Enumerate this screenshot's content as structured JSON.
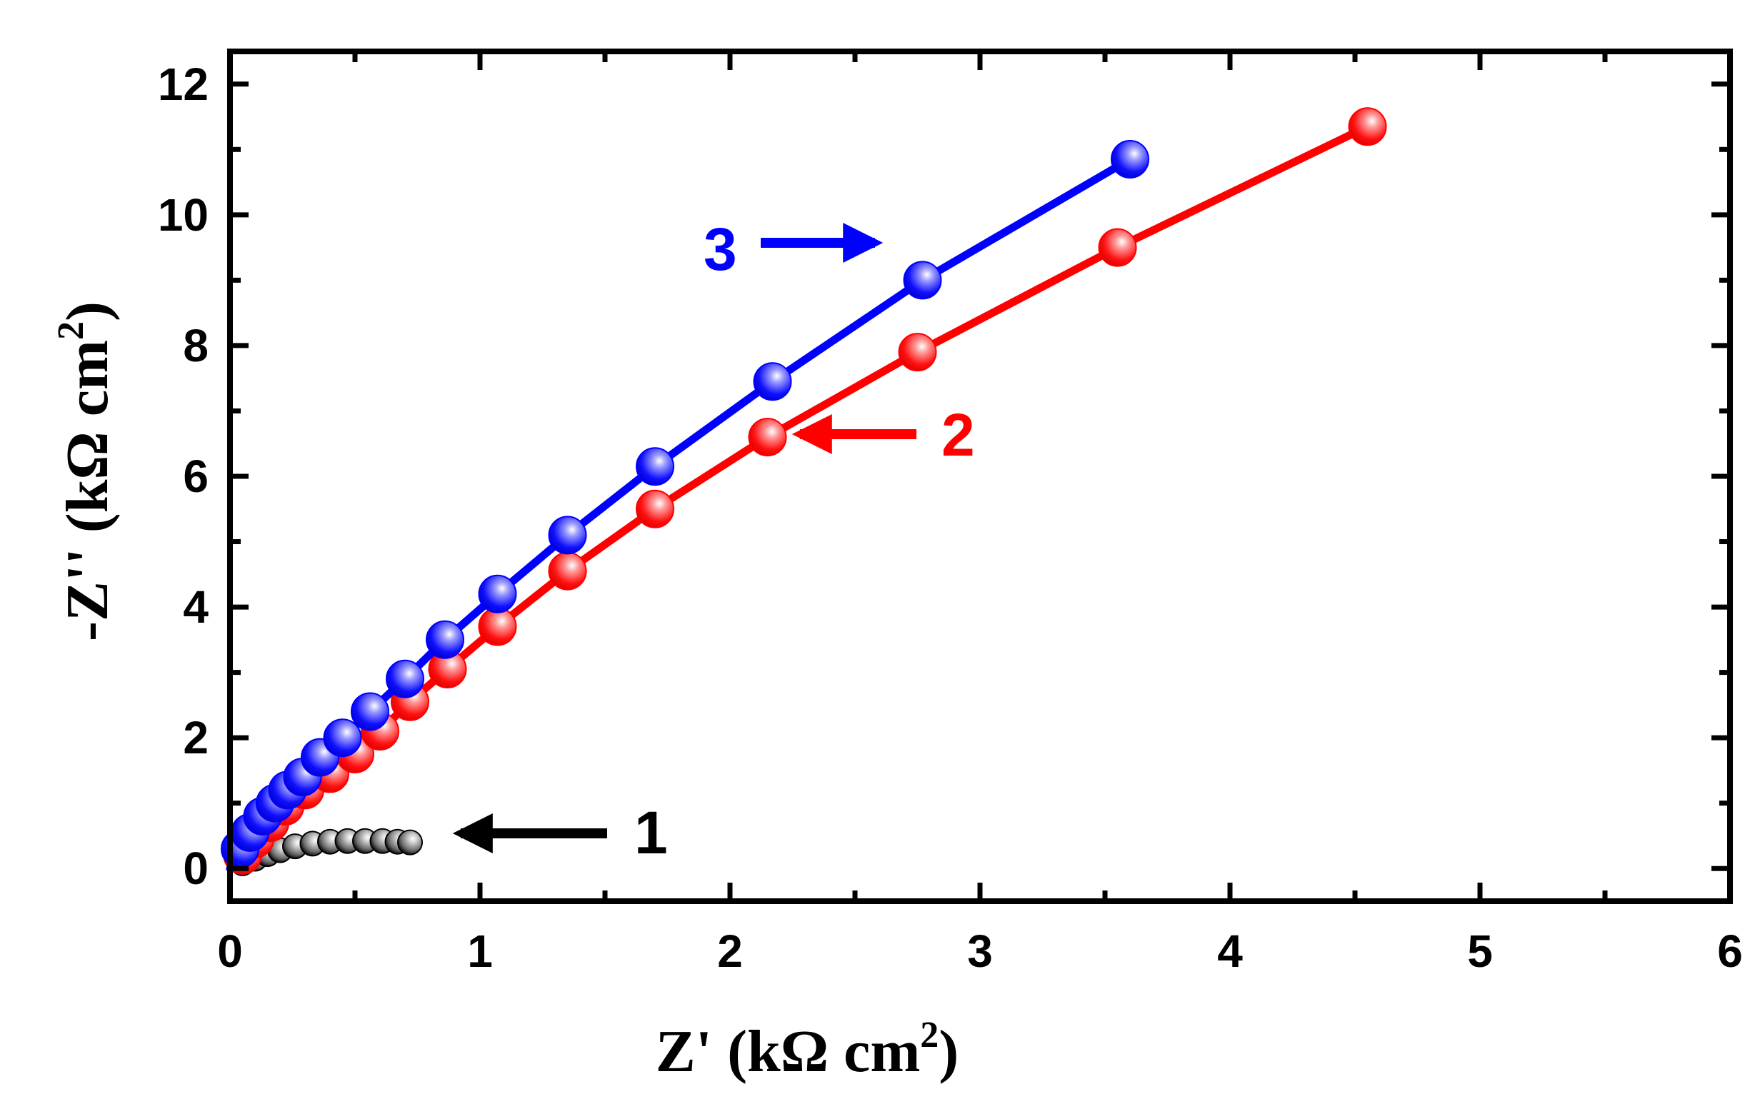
{
  "chart_data": {
    "type": "scatter",
    "xlabel": "Z' (kΩ cm",
    "xlabel_sup": "2",
    "xlabel_close": ")",
    "ylabel": "-Z'' (kΩ cm",
    "ylabel_sup": "2",
    "ylabel_close": ")",
    "xlim": [
      0,
      6
    ],
    "ylim": [
      -0.5,
      12.5
    ],
    "xticks": [
      "0",
      "1",
      "2",
      "3",
      "4",
      "5",
      "6"
    ],
    "yticks": [
      "0",
      "2",
      "4",
      "6",
      "8",
      "10",
      "12"
    ],
    "grid": false,
    "series": [
      {
        "name": "1",
        "color": "#000000",
        "marker_fill": "#8a8a8a",
        "x": [
          0.0,
          0.05,
          0.1,
          0.15,
          0.2,
          0.26,
          0.33,
          0.4,
          0.47,
          0.54,
          0.61,
          0.67,
          0.72
        ],
        "y": [
          0.0,
          0.08,
          0.15,
          0.22,
          0.28,
          0.34,
          0.38,
          0.41,
          0.42,
          0.42,
          0.42,
          0.41,
          0.4
        ]
      },
      {
        "name": "2",
        "color": "#ff0000",
        "marker_fill": "#ff0000",
        "x": [
          0.0,
          0.05,
          0.1,
          0.16,
          0.22,
          0.3,
          0.4,
          0.5,
          0.6,
          0.72,
          0.87,
          1.07,
          1.35,
          1.7,
          2.15,
          2.75,
          3.55,
          4.55
        ],
        "y": [
          0.0,
          0.2,
          0.45,
          0.7,
          0.95,
          1.2,
          1.45,
          1.75,
          2.1,
          2.55,
          3.05,
          3.7,
          4.55,
          5.5,
          6.6,
          7.9,
          9.5,
          11.35
        ]
      },
      {
        "name": "3",
        "color": "#0000ff",
        "marker_fill": "#0000ff",
        "x": [
          0.0,
          0.04,
          0.08,
          0.13,
          0.18,
          0.23,
          0.29,
          0.36,
          0.45,
          0.56,
          0.7,
          0.86,
          1.07,
          1.35,
          1.7,
          2.17,
          2.77,
          3.6
        ],
        "y": [
          0.0,
          0.3,
          0.55,
          0.8,
          1.0,
          1.2,
          1.4,
          1.7,
          2.0,
          2.4,
          2.9,
          3.5,
          4.2,
          5.1,
          6.15,
          7.45,
          9.0,
          10.85
        ]
      }
    ],
    "annotations": [
      {
        "text": "1",
        "color": "#000000",
        "arrow_direction": "left"
      },
      {
        "text": "2",
        "color": "#ff0000",
        "arrow_direction": "left"
      },
      {
        "text": "3",
        "color": "#0000ff",
        "arrow_direction": "right"
      }
    ]
  }
}
